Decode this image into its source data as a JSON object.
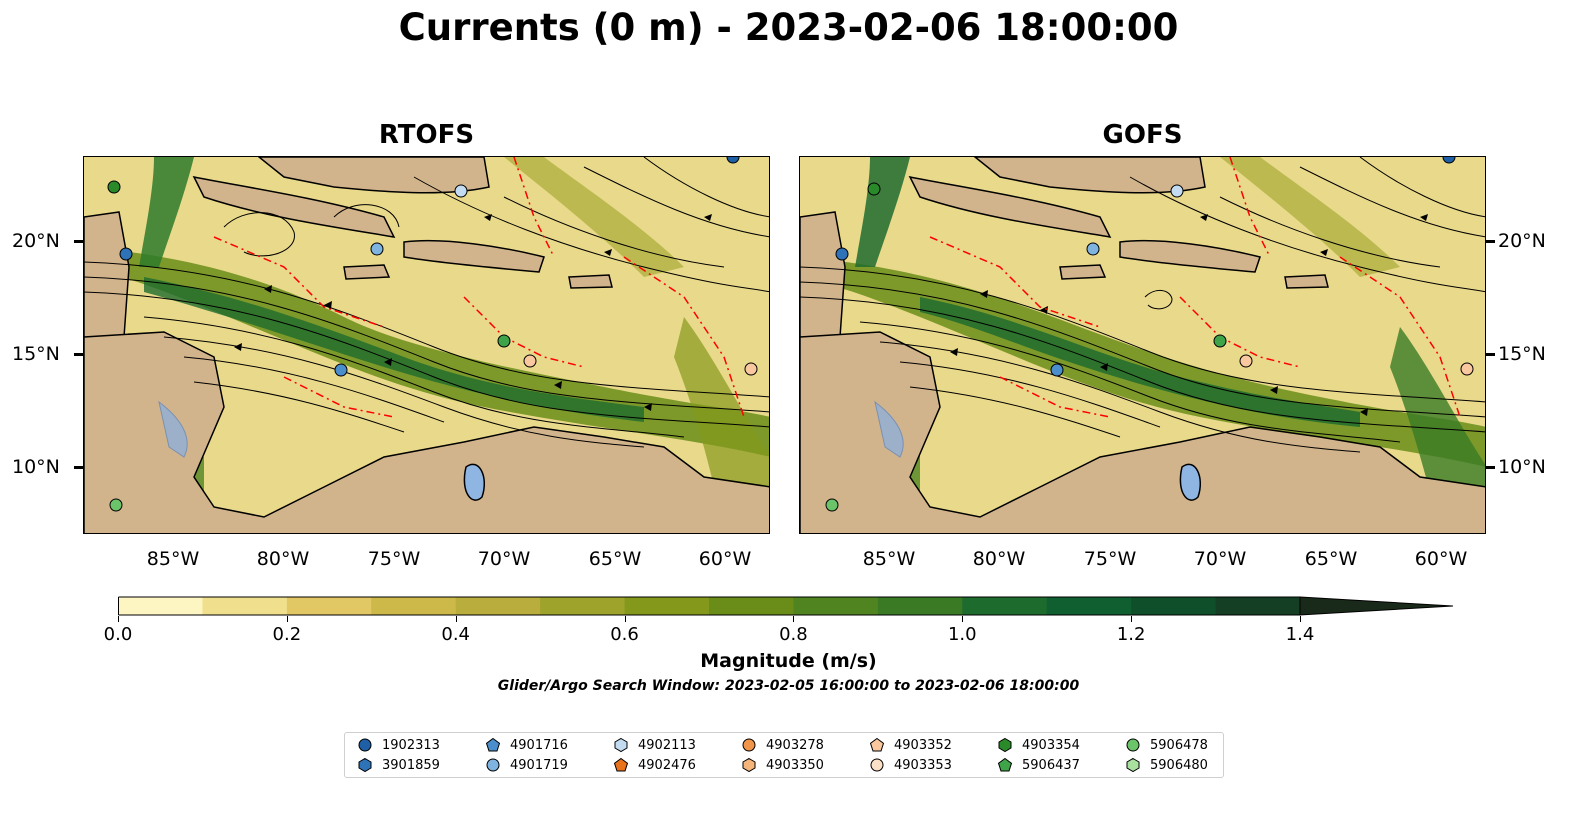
{
  "title": "Currents (0 m) - 2023-02-06 18:00:00",
  "panels": [
    {
      "title": "RTOFS"
    },
    {
      "title": "GOFS"
    }
  ],
  "lat_labels": [
    "20°N",
    "15°N",
    "10°N"
  ],
  "lon_labels": [
    "85°W",
    "80°W",
    "75°W",
    "70°W",
    "65°W",
    "60°W"
  ],
  "colorbar": {
    "label": "Magnitude (m/s)",
    "ticks": [
      "0.0",
      "0.2",
      "0.4",
      "0.6",
      "0.8",
      "1.0",
      "1.2",
      "1.4"
    ],
    "colors": [
      "#fdf6c3",
      "#f0e08e",
      "#e2c865",
      "#cdb84a",
      "#b9ad3d",
      "#9ea32c",
      "#84991c",
      "#6a8d19",
      "#4f8420",
      "#3a7a24",
      "#1e6b2e",
      "#0f5f31",
      "#0f502b",
      "#143f25",
      "#17321f",
      "#1a2a1a"
    ]
  },
  "subtitle": "Glider/Argo Search Window: 2023-02-05 16:00:00 to 2023-02-06 18:00:00",
  "legend": [
    {
      "id": "1902313",
      "marker": "circle",
      "color": "#1f5fa6"
    },
    {
      "id": "3901859",
      "marker": "hexagon",
      "color": "#2e72b8"
    },
    {
      "id": "4901716",
      "marker": "pentagon",
      "color": "#4a8fcc"
    },
    {
      "id": "4901719",
      "marker": "circle",
      "color": "#7fb3e0"
    },
    {
      "id": "4902113",
      "marker": "hexagon",
      "color": "#c4dcf2"
    },
    {
      "id": "4902476",
      "marker": "pentagon",
      "color": "#e8731a"
    },
    {
      "id": "4903278",
      "marker": "circle",
      "color": "#f0954a"
    },
    {
      "id": "4903350",
      "marker": "hexagon",
      "color": "#f6b57a"
    },
    {
      "id": "4903352",
      "marker": "pentagon",
      "color": "#f9c89e"
    },
    {
      "id": "4903353",
      "marker": "circle",
      "color": "#fde1c6"
    },
    {
      "id": "4903354",
      "marker": "hexagon",
      "color": "#2a8a2a"
    },
    {
      "id": "5906437",
      "marker": "pentagon",
      "color": "#3fa34a"
    },
    {
      "id": "5906478",
      "marker": "circle",
      "color": "#6cc46a"
    },
    {
      "id": "5906480",
      "marker": "hexagon",
      "color": "#a9e0a0"
    }
  ]
}
